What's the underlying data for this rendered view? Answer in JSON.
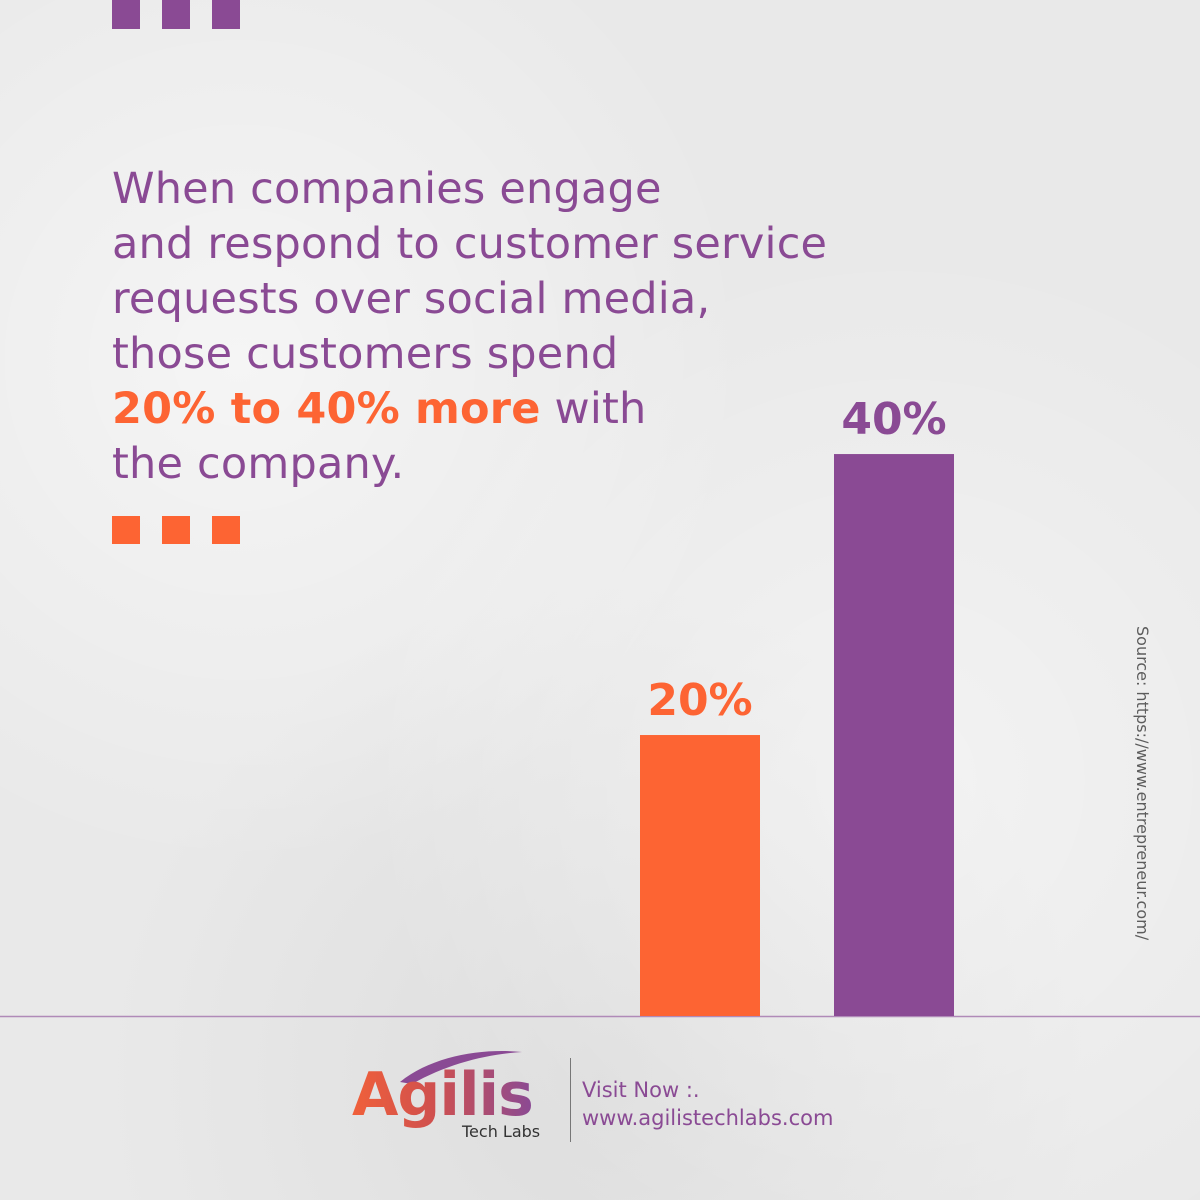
{
  "headline": {
    "line1": "When companies engage",
    "line2": "and respond to customer service",
    "line3": "requests over social media,",
    "line4": "those customers spend",
    "highlight": "20% to 40% more",
    "line5_rest": " with",
    "line6": "the company."
  },
  "chart_data": {
    "type": "bar",
    "categories": [
      "",
      ""
    ],
    "values": [
      20,
      40
    ],
    "data_labels": [
      "20%",
      "40%"
    ],
    "colors": [
      "#fd6433",
      "#8a4a94"
    ],
    "ylim": [
      0,
      41
    ],
    "grid": false,
    "legend": "none"
  },
  "source": "Source: https://www.entrepreneur.com/",
  "footer": {
    "logo_text": "Agilis",
    "logo_sub": "Tech Labs",
    "visit_label": "Visit Now :.",
    "visit_url": "www.agilistechlabs.com"
  },
  "colors": {
    "purple": "#8a4a94",
    "orange": "#fd6433",
    "background": "#e9e9e9"
  }
}
